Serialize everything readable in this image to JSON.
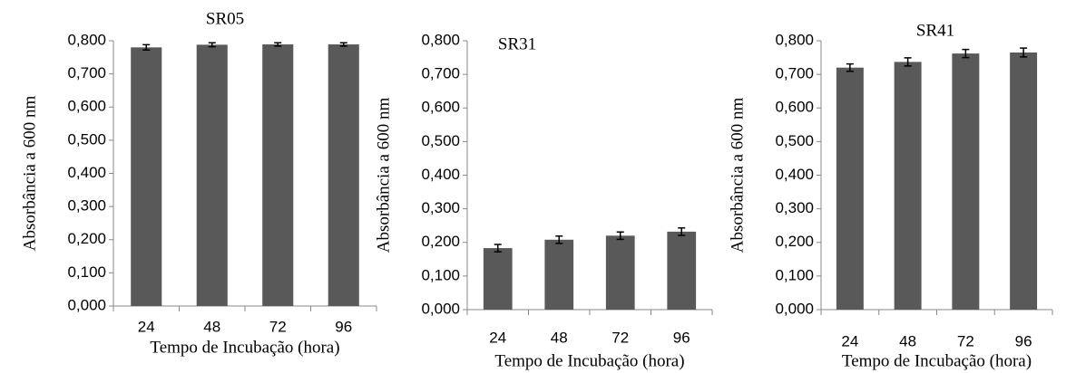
{
  "chart_data": [
    {
      "type": "bar",
      "title": "SR05",
      "y_label": "Absorbância a 600 nm",
      "x_label": "Tempo de Incubação (hora)",
      "categories": [
        "24",
        "48",
        "72",
        "96"
      ],
      "values": [
        0.78,
        0.788,
        0.789,
        0.789
      ],
      "errors": [
        0.008,
        0.006,
        0.005,
        0.005
      ],
      "color": "#595959",
      "ylim": [
        0,
        0.8
      ],
      "yticks": [
        {
          "value": 0,
          "label": "0,000"
        },
        {
          "value": 0.1,
          "label": "0,100"
        },
        {
          "value": 0.2,
          "label": "0,200"
        },
        {
          "value": 0.3,
          "label": "0,300"
        },
        {
          "value": 0.4,
          "label": "0,400"
        },
        {
          "value": 0.5,
          "label": "0,500"
        },
        {
          "value": 0.6,
          "label": "0,600"
        },
        {
          "value": 0.7,
          "label": "0,700"
        },
        {
          "value": 0.8,
          "label": "0,800"
        }
      ]
    },
    {
      "type": "bar",
      "title": "SR31",
      "y_label": "Absorbância a 600 nm",
      "x_label": "Tempo de Incubação (hora)",
      "categories": [
        "24",
        "48",
        "72",
        "96"
      ],
      "values": [
        0.183,
        0.208,
        0.22,
        0.232
      ],
      "errors": [
        0.011,
        0.011,
        0.011,
        0.011
      ],
      "color": "#595959",
      "ylim": [
        0,
        0.8
      ],
      "yticks": [
        {
          "value": 0,
          "label": "0,000"
        },
        {
          "value": 0.1,
          "label": "0,100"
        },
        {
          "value": 0.2,
          "label": "0,200"
        },
        {
          "value": 0.3,
          "label": "0,300"
        },
        {
          "value": 0.4,
          "label": "0,400"
        },
        {
          "value": 0.5,
          "label": "0,500"
        },
        {
          "value": 0.6,
          "label": "0,600"
        },
        {
          "value": 0.7,
          "label": "0,700"
        },
        {
          "value": 0.8,
          "label": "0,800"
        }
      ]
    },
    {
      "type": "bar",
      "title": "SR41",
      "y_label": "Absorbância a 600 nm",
      "x_label": "Tempo de Incubação (hora)",
      "categories": [
        "24",
        "48",
        "72",
        "96"
      ],
      "values": [
        0.72,
        0.737,
        0.762,
        0.765
      ],
      "errors": [
        0.011,
        0.012,
        0.012,
        0.013
      ],
      "color": "#595959",
      "ylim": [
        0,
        0.8
      ],
      "yticks": [
        {
          "value": 0,
          "label": "0,000"
        },
        {
          "value": 0.1,
          "label": "0,100"
        },
        {
          "value": 0.2,
          "label": "0,200"
        },
        {
          "value": 0.3,
          "label": "0,300"
        },
        {
          "value": 0.4,
          "label": "0,400"
        },
        {
          "value": 0.5,
          "label": "0,500"
        },
        {
          "value": 0.6,
          "label": "0,600"
        },
        {
          "value": 0.7,
          "label": "0,700"
        },
        {
          "value": 0.8,
          "label": "0,800"
        }
      ]
    }
  ]
}
